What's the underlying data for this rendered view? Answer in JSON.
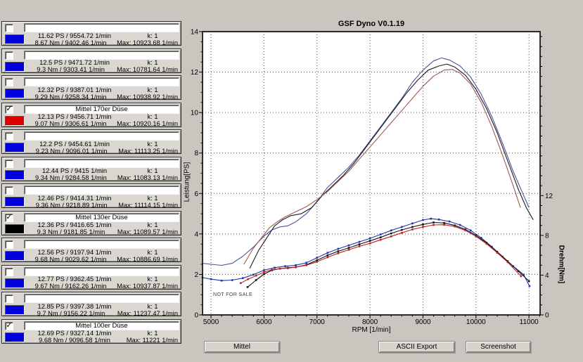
{
  "app_title": "GSF Dyno V0.1.19",
  "watermark": "NOT FOR SALE",
  "buttons": {
    "mittel": "Mittel",
    "ascii_export": "ASCII Export",
    "screenshot": "Screenshot"
  },
  "colors": {
    "run_blue": "#0000dd",
    "run_red": "#dd0000",
    "run_black": "#000000",
    "window_bg": "#c9c6c0",
    "plot_bg": "#ffffff",
    "grid": "#4a4a4a"
  },
  "runs": [
    {
      "checked": false,
      "color": "#0000dd",
      "name": "",
      "ps": "11.62 PS / 9554.72 1/min",
      "nm": "8.67 Nm / 9402.46 1/min",
      "k": "k: 1",
      "max": "Max: 10923.68 1/min"
    },
    {
      "checked": false,
      "color": "#0000dd",
      "name": "",
      "ps": "12.5 PS / 9471.72 1/min",
      "nm": "9.3 Nm / 9303.41 1/min",
      "k": "k: 1",
      "max": "Max: 10781.64 1/min"
    },
    {
      "checked": false,
      "color": "#0000dd",
      "name": "",
      "ps": "12.32 PS / 9387.01 1/min",
      "nm": "9.29 Nm / 9258.34 1/min",
      "k": "k: 1",
      "max": "Max: 10938.92 1/min"
    },
    {
      "checked": true,
      "color": "#dd0000",
      "name": "Mittel 170er Düse",
      "ps": "12.13 PS / 9456.71 1/min",
      "nm": "9.07 Nm / 9306.61 1/min",
      "k": "k: 1",
      "max": "Max: 10920.16 1/min"
    },
    {
      "checked": false,
      "color": "#0000dd",
      "name": "",
      "ps": "12.2 PS / 9454.61 1/min",
      "nm": "9.23 Nm / 9096.01 1/min",
      "k": "k: 1",
      "max": "Max: 11113.25 1/min"
    },
    {
      "checked": false,
      "color": "#0000dd",
      "name": "",
      "ps": "12.44 PS / 9415 1/min",
      "nm": "9.34 Nm / 9284.58 1/min",
      "k": "k: 1",
      "max": "Max: 11083.13 1/min"
    },
    {
      "checked": false,
      "color": "#0000dd",
      "name": "",
      "ps": "12.46 PS / 9414.31 1/min",
      "nm": "9.36 Nm / 9218.89 1/min",
      "k": "k: 1",
      "max": "Max: 11114.15 1/min"
    },
    {
      "checked": true,
      "color": "#000000",
      "name": "Mittel 130er Düse",
      "ps": "12.36 PS / 9416.65 1/min",
      "nm": "9.3 Nm / 9181.85 1/min",
      "k": "k: 1",
      "max": "Max: 11089.57 1/min"
    },
    {
      "checked": false,
      "color": "#0000dd",
      "name": "",
      "ps": "12.56 PS / 9197.94 1/min",
      "nm": "9.68 Nm / 9029.62 1/min",
      "k": "k: 1",
      "max": "Max: 10886.69 1/min"
    },
    {
      "checked": false,
      "color": "#0000dd",
      "name": "",
      "ps": "12.77 PS / 9362.45 1/min",
      "nm": "9.67 Nm / 9162.26 1/min",
      "k": "k: 1",
      "max": "Max: 10937.87 1/min"
    },
    {
      "checked": false,
      "color": "#0000dd",
      "name": "",
      "ps": "12.85 PS / 9397.38 1/min",
      "nm": "9.7 Nm / 9156.22 1/min",
      "k": "k: 1",
      "max": "Max: 11237.47 1/min"
    },
    {
      "checked": true,
      "color": "#0000dd",
      "name": "Mittel 100er Düse",
      "ps": "12.69 PS / 9327.14 1/min",
      "nm": "9.68 Nm / 9096.58 1/min",
      "k": "k: 1",
      "max": "Max: 11221 1/min"
    }
  ],
  "chart_data": {
    "type": "line",
    "title": "GSF Dyno V0.1.19",
    "xlabel": "RPM [1/min]",
    "ylabel_left": "Leistung[PS]",
    "ylabel_right": "Drehm[Nm]",
    "xlim": [
      4840,
      11210
    ],
    "ylim_left": [
      0,
      14
    ],
    "ylim_right": [
      0,
      28.5
    ],
    "xticks": [
      5000,
      6000,
      7000,
      8000,
      9000,
      10000,
      11000
    ],
    "yticks_left": [
      0,
      2,
      4,
      6,
      8,
      10,
      12,
      14
    ],
    "yticks_right_labeled": [
      0,
      4,
      8,
      12
    ],
    "grid": true,
    "legend": "none",
    "series": [
      {
        "name": "Mittel 100er Düse Leistung",
        "axis": "left",
        "color": "#50509a",
        "markers": false,
        "x": [
          4840,
          5000,
          5200,
          5400,
          5600,
          5800,
          6000,
          6150,
          6300,
          6450,
          6600,
          6800,
          7000,
          7200,
          7400,
          7600,
          7800,
          8000,
          8200,
          8400,
          8600,
          8800,
          9000,
          9200,
          9350,
          9500,
          9700,
          9900,
          10100,
          10300,
          10500,
          10700,
          10900,
          11000
        ],
        "y": [
          2.55,
          2.5,
          2.45,
          2.55,
          2.9,
          3.35,
          3.9,
          4.2,
          4.35,
          4.4,
          4.6,
          5.0,
          5.6,
          6.3,
          6.8,
          7.3,
          7.9,
          8.6,
          9.3,
          10.0,
          10.7,
          11.5,
          12.1,
          12.55,
          12.7,
          12.6,
          12.3,
          11.75,
          10.9,
          9.8,
          8.5,
          7.1,
          5.9,
          5.3
        ]
      },
      {
        "name": "Mittel 130er Düse Leistung",
        "axis": "left",
        "color": "#1c1c1c",
        "markers": false,
        "x": [
          5730,
          5900,
          6050,
          6200,
          6350,
          6500,
          6700,
          6900,
          7100,
          7300,
          7500,
          7700,
          7900,
          8100,
          8300,
          8500,
          8700,
          8900,
          9100,
          9300,
          9450,
          9600,
          9800,
          10000,
          10200,
          10400,
          10600,
          10800,
          10950,
          11080
        ],
        "y": [
          2.3,
          3.2,
          3.8,
          4.4,
          4.7,
          4.9,
          5.0,
          5.3,
          5.9,
          6.4,
          6.9,
          7.5,
          8.2,
          8.9,
          9.6,
          10.3,
          11.0,
          11.6,
          12.1,
          12.3,
          12.4,
          12.25,
          11.85,
          11.15,
          10.2,
          9.0,
          7.6,
          6.2,
          5.3,
          4.7
        ]
      },
      {
        "name": "Mittel 170er Düse Leistung",
        "axis": "left",
        "color": "#9a5a5a",
        "markers": false,
        "x": [
          5620,
          5800,
          5950,
          6100,
          6250,
          6400,
          6600,
          6800,
          7000,
          7200,
          7400,
          7600,
          7800,
          8000,
          8200,
          8400,
          8600,
          8800,
          9000,
          9200,
          9400,
          9550,
          9700,
          9900,
          10100,
          10300,
          10500,
          10700,
          10840
        ],
        "y": [
          2.5,
          3.3,
          3.8,
          4.3,
          4.6,
          4.85,
          5.1,
          5.35,
          5.7,
          6.1,
          6.6,
          7.1,
          7.7,
          8.3,
          8.9,
          9.5,
          10.1,
          10.7,
          11.3,
          11.8,
          12.1,
          12.13,
          11.95,
          11.4,
          10.5,
          9.3,
          7.9,
          6.4,
          5.3
        ]
      },
      {
        "name": "Mittel 100er Düse Drehmoment",
        "axis": "right",
        "color": "#2233aa",
        "markers": true,
        "x": [
          4840,
          5000,
          5200,
          5400,
          5600,
          5800,
          6000,
          6200,
          6400,
          6600,
          6800,
          7000,
          7200,
          7400,
          7600,
          7800,
          8000,
          8200,
          8400,
          8600,
          8800,
          9000,
          9150,
          9300,
          9500,
          9700,
          9900,
          10100,
          10300,
          10500,
          10700,
          10900,
          11010
        ],
        "y": [
          3.75,
          3.6,
          3.45,
          3.5,
          3.7,
          4.05,
          4.5,
          4.75,
          4.9,
          5.0,
          5.25,
          5.75,
          6.25,
          6.65,
          7.0,
          7.35,
          7.7,
          8.1,
          8.5,
          8.85,
          9.2,
          9.55,
          9.68,
          9.6,
          9.4,
          9.05,
          8.5,
          7.75,
          6.85,
          5.85,
          4.9,
          4.05,
          2.9
        ]
      },
      {
        "name": "Mittel 130er Düse Drehmoment",
        "axis": "right",
        "color": "#111111",
        "markers": true,
        "x": [
          5690,
          5850,
          6000,
          6150,
          6300,
          6450,
          6600,
          6800,
          7000,
          7200,
          7400,
          7600,
          7800,
          8000,
          8200,
          8400,
          8600,
          8800,
          9000,
          9200,
          9400,
          9600,
          9800,
          10000,
          10200,
          10400,
          10600,
          10800,
          11000
        ],
        "y": [
          2.8,
          3.5,
          4.1,
          4.5,
          4.65,
          4.75,
          4.8,
          5.05,
          5.5,
          6.0,
          6.4,
          6.75,
          7.1,
          7.45,
          7.8,
          8.2,
          8.55,
          8.85,
          9.1,
          9.3,
          9.25,
          9.0,
          8.6,
          8.0,
          7.25,
          6.35,
          5.4,
          4.4,
          3.4
        ]
      },
      {
        "name": "Mittel 170er Düse Drehmoment",
        "axis": "right",
        "color": "#bb2222",
        "markers": true,
        "x": [
          5560,
          5700,
          5850,
          6000,
          6150,
          6300,
          6450,
          6600,
          6800,
          7000,
          7200,
          7400,
          7600,
          7800,
          8000,
          8200,
          8400,
          8600,
          8800,
          9000,
          9200,
          9400,
          9600,
          9800,
          10000,
          10200,
          10400,
          10600,
          10850
        ],
        "y": [
          3.2,
          3.6,
          3.95,
          4.3,
          4.55,
          4.65,
          4.7,
          4.8,
          5.0,
          5.35,
          5.8,
          6.2,
          6.55,
          6.9,
          7.2,
          7.55,
          7.9,
          8.25,
          8.6,
          8.85,
          9.05,
          9.07,
          8.9,
          8.5,
          7.9,
          7.15,
          6.25,
          5.3,
          3.9
        ]
      }
    ]
  }
}
